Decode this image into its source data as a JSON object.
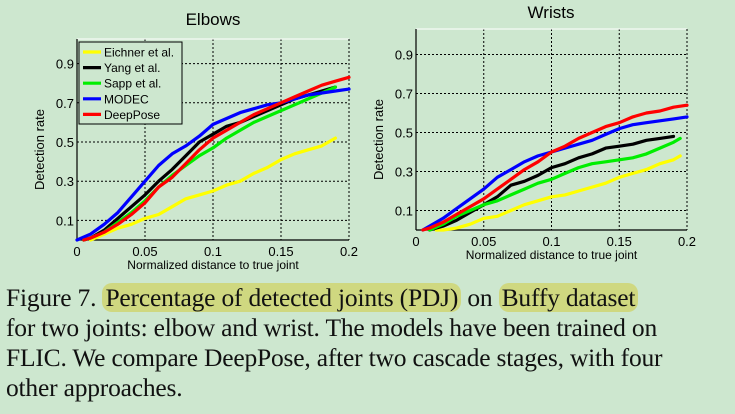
{
  "chart_data": [
    {
      "type": "line",
      "title": "Elbows",
      "xlabel": "Normalized distance to true joint",
      "ylabel": "Detection rate",
      "xlim": [
        0,
        0.2
      ],
      "ylim": [
        0,
        1.02
      ],
      "xticks": [
        0,
        0.05,
        0.1,
        0.15,
        0.2
      ],
      "xtick_labels": [
        "0",
        "0.05",
        "0.1",
        "0.15",
        "0.2"
      ],
      "yticks": [
        0.1,
        0.3,
        0.5,
        0.7,
        0.9
      ],
      "ytick_labels": [
        "0.1",
        "0.3",
        "0.5",
        "0.7",
        "0.9"
      ],
      "grid": true,
      "legend_position": "upper left",
      "series": [
        {
          "name": "Eichner et al.",
          "color": "#ffff00",
          "x": [
            0.01,
            0.02,
            0.03,
            0.04,
            0.05,
            0.06,
            0.07,
            0.08,
            0.09,
            0.1,
            0.11,
            0.12,
            0.13,
            0.14,
            0.15,
            0.16,
            0.17,
            0.18,
            0.19
          ],
          "y": [
            0.0,
            0.03,
            0.06,
            0.08,
            0.11,
            0.13,
            0.17,
            0.21,
            0.23,
            0.25,
            0.28,
            0.3,
            0.34,
            0.37,
            0.41,
            0.44,
            0.46,
            0.48,
            0.52
          ]
        },
        {
          "name": "Yang et al.",
          "color": "#000000",
          "x": [
            0.005,
            0.01,
            0.02,
            0.03,
            0.04,
            0.05,
            0.06,
            0.07,
            0.08,
            0.09,
            0.1,
            0.11,
            0.12,
            0.13,
            0.14,
            0.15,
            0.16,
            0.17,
            0.18,
            0.19
          ],
          "y": [
            0.0,
            0.01,
            0.05,
            0.11,
            0.17,
            0.23,
            0.3,
            0.36,
            0.43,
            0.5,
            0.54,
            0.58,
            0.6,
            0.63,
            0.66,
            0.69,
            0.72,
            0.74,
            0.76,
            0.78
          ]
        },
        {
          "name": "Sapp et al.",
          "color": "#00ee00",
          "x": [
            0.005,
            0.01,
            0.02,
            0.03,
            0.04,
            0.05,
            0.06,
            0.07,
            0.08,
            0.09,
            0.1,
            0.11,
            0.12,
            0.13,
            0.14,
            0.15,
            0.16,
            0.17,
            0.18,
            0.19
          ],
          "y": [
            0.0,
            0.01,
            0.04,
            0.09,
            0.14,
            0.2,
            0.27,
            0.33,
            0.38,
            0.43,
            0.47,
            0.52,
            0.56,
            0.6,
            0.63,
            0.66,
            0.69,
            0.72,
            0.75,
            0.78
          ]
        },
        {
          "name": "MODEC",
          "color": "#0000ff",
          "x": [
            0.0,
            0.01,
            0.02,
            0.03,
            0.04,
            0.05,
            0.06,
            0.07,
            0.08,
            0.09,
            0.1,
            0.11,
            0.12,
            0.13,
            0.14,
            0.15,
            0.16,
            0.17,
            0.18,
            0.19,
            0.2
          ],
          "y": [
            0.0,
            0.03,
            0.08,
            0.14,
            0.22,
            0.3,
            0.38,
            0.44,
            0.48,
            0.53,
            0.59,
            0.62,
            0.65,
            0.67,
            0.69,
            0.7,
            0.72,
            0.74,
            0.75,
            0.76,
            0.77
          ]
        },
        {
          "name": "DeepPose",
          "color": "#ff0000",
          "x": [
            0.005,
            0.01,
            0.02,
            0.03,
            0.04,
            0.05,
            0.06,
            0.07,
            0.08,
            0.09,
            0.1,
            0.11,
            0.12,
            0.13,
            0.14,
            0.15,
            0.16,
            0.17,
            0.18,
            0.19,
            0.2
          ],
          "y": [
            0.0,
            0.01,
            0.04,
            0.08,
            0.13,
            0.19,
            0.27,
            0.32,
            0.39,
            0.46,
            0.52,
            0.56,
            0.6,
            0.64,
            0.67,
            0.7,
            0.73,
            0.76,
            0.79,
            0.81,
            0.83
          ]
        }
      ]
    },
    {
      "type": "line",
      "title": "Wrists",
      "xlabel": "Normalized distance to true joint",
      "ylabel": "Detection rate",
      "xlim": [
        0,
        0.2
      ],
      "ylim": [
        0,
        1.02
      ],
      "xticks": [
        0,
        0.05,
        0.1,
        0.15,
        0.2
      ],
      "xtick_labels": [
        "0",
        "0.05",
        "0.1",
        "0.15",
        "0.2"
      ],
      "yticks": [
        0.1,
        0.3,
        0.5,
        0.7,
        0.9
      ],
      "ytick_labels": [
        "0.1",
        "0.3",
        "0.5",
        "0.7",
        "0.9"
      ],
      "grid": true,
      "legend_position": "none",
      "series": [
        {
          "name": "Eichner et al.",
          "color": "#ffff00",
          "x": [
            0.015,
            0.02,
            0.03,
            0.04,
            0.05,
            0.06,
            0.07,
            0.08,
            0.09,
            0.1,
            0.11,
            0.12,
            0.13,
            0.14,
            0.15,
            0.16,
            0.17,
            0.18,
            0.19,
            0.195
          ],
          "y": [
            0.0,
            0.0,
            0.01,
            0.03,
            0.06,
            0.07,
            0.1,
            0.13,
            0.15,
            0.17,
            0.18,
            0.2,
            0.22,
            0.24,
            0.27,
            0.29,
            0.31,
            0.34,
            0.36,
            0.38
          ]
        },
        {
          "name": "Yang et al.",
          "color": "#000000",
          "x": [
            0.01,
            0.02,
            0.03,
            0.04,
            0.05,
            0.06,
            0.07,
            0.08,
            0.09,
            0.1,
            0.11,
            0.12,
            0.13,
            0.14,
            0.15,
            0.16,
            0.17,
            0.18,
            0.19
          ],
          "y": [
            0.0,
            0.02,
            0.05,
            0.09,
            0.13,
            0.17,
            0.23,
            0.25,
            0.28,
            0.32,
            0.34,
            0.37,
            0.39,
            0.42,
            0.43,
            0.44,
            0.46,
            0.47,
            0.48
          ]
        },
        {
          "name": "Sapp et al.",
          "color": "#00ee00",
          "x": [
            0.01,
            0.02,
            0.03,
            0.04,
            0.05,
            0.06,
            0.07,
            0.08,
            0.09,
            0.1,
            0.11,
            0.12,
            0.13,
            0.14,
            0.15,
            0.16,
            0.17,
            0.18,
            0.19,
            0.195
          ],
          "y": [
            0.0,
            0.03,
            0.07,
            0.1,
            0.13,
            0.15,
            0.18,
            0.21,
            0.24,
            0.26,
            0.29,
            0.32,
            0.34,
            0.35,
            0.36,
            0.37,
            0.39,
            0.42,
            0.45,
            0.47
          ]
        },
        {
          "name": "MODEC",
          "color": "#0000ff",
          "x": [
            0.005,
            0.01,
            0.02,
            0.03,
            0.04,
            0.05,
            0.06,
            0.07,
            0.08,
            0.09,
            0.1,
            0.11,
            0.12,
            0.13,
            0.14,
            0.15,
            0.16,
            0.17,
            0.18,
            0.19,
            0.2
          ],
          "y": [
            0.0,
            0.02,
            0.06,
            0.11,
            0.16,
            0.21,
            0.27,
            0.31,
            0.35,
            0.38,
            0.4,
            0.42,
            0.44,
            0.46,
            0.49,
            0.52,
            0.54,
            0.55,
            0.56,
            0.57,
            0.58
          ]
        },
        {
          "name": "DeepPose",
          "color": "#ff0000",
          "x": [
            0.005,
            0.01,
            0.02,
            0.03,
            0.04,
            0.05,
            0.06,
            0.07,
            0.08,
            0.09,
            0.1,
            0.11,
            0.12,
            0.13,
            0.14,
            0.15,
            0.16,
            0.17,
            0.18,
            0.19,
            0.2
          ],
          "y": [
            0.0,
            0.01,
            0.04,
            0.08,
            0.12,
            0.16,
            0.21,
            0.26,
            0.31,
            0.35,
            0.4,
            0.43,
            0.47,
            0.5,
            0.53,
            0.55,
            0.58,
            0.6,
            0.61,
            0.63,
            0.64
          ]
        }
      ]
    }
  ],
  "caption": {
    "lines": [
      {
        "parts": [
          {
            "text": "Figure 7.  ",
            "highlight": false
          },
          {
            "text": "Percentage of detected joints (PDJ)",
            "highlight": true
          },
          {
            "text": " on ",
            "highlight": false
          },
          {
            "text": "Buffy dataset",
            "highlight": true
          }
        ]
      },
      {
        "parts": [
          {
            "text": "for two joints: elbow and wrist.  The models have been trained on",
            "highlight": false
          }
        ]
      },
      {
        "parts": [
          {
            "text": "FLIC. We compare DeepPose, after two cascade stages, with four",
            "highlight": false
          }
        ]
      },
      {
        "parts": [
          {
            "text": "other approaches.",
            "highlight": false
          }
        ]
      }
    ]
  }
}
